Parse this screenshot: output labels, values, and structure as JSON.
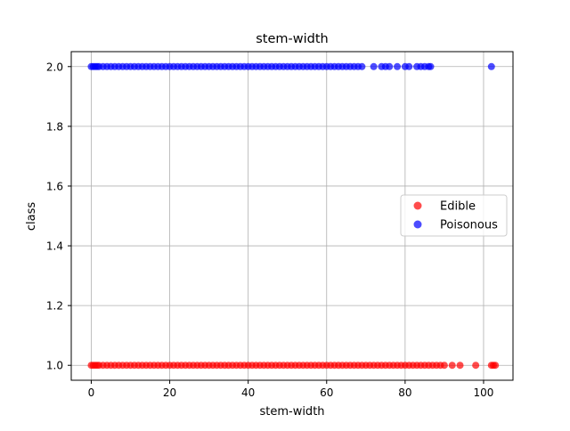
{
  "chart_data": {
    "type": "scatter",
    "title": "stem-width",
    "xlabel": "stem-width",
    "ylabel": "class",
    "xlim": [
      -5.1,
      107.5
    ],
    "ylim": [
      0.95,
      2.05
    ],
    "xticks": [
      0,
      20,
      40,
      60,
      80,
      100
    ],
    "yticks": [
      1.0,
      1.2,
      1.4,
      1.6,
      1.8,
      2.0
    ],
    "xtick_labels": [
      "0",
      "20",
      "40",
      "60",
      "80",
      "100"
    ],
    "ytick_labels": [
      "1.0",
      "1.2",
      "1.4",
      "1.6",
      "1.8",
      "2.0"
    ],
    "grid": true,
    "legend_position": "center-right",
    "series": [
      {
        "name": "Edible",
        "color": "#ff0000",
        "y": 1.0,
        "x": [
          0,
          0.5,
          1,
          1.5,
          2,
          3,
          4,
          5,
          6,
          7,
          8,
          9,
          10,
          11,
          12,
          13,
          14,
          15,
          16,
          17,
          18,
          19,
          20,
          21,
          22,
          23,
          24,
          25,
          26,
          27,
          28,
          29,
          30,
          31,
          32,
          33,
          34,
          35,
          36,
          37,
          38,
          39,
          40,
          41,
          42,
          43,
          44,
          45,
          46,
          47,
          48,
          49,
          50,
          51,
          52,
          53,
          54,
          55,
          56,
          57,
          58,
          59,
          60,
          61,
          62,
          63,
          64,
          65,
          66,
          67,
          68,
          69,
          70,
          71,
          72,
          73,
          74,
          75,
          76,
          77,
          78,
          79,
          80,
          81,
          82,
          83,
          84,
          85,
          86,
          87,
          88,
          89,
          90,
          92,
          94,
          98,
          102,
          102.5,
          103
        ]
      },
      {
        "name": "Poisonous",
        "color": "#0000ff",
        "y": 2.0,
        "x": [
          0,
          0.5,
          1,
          1.5,
          2,
          3,
          4,
          5,
          6,
          7,
          8,
          9,
          10,
          11,
          12,
          13,
          14,
          15,
          16,
          17,
          18,
          19,
          20,
          21,
          22,
          23,
          24,
          25,
          26,
          27,
          28,
          29,
          30,
          31,
          32,
          33,
          34,
          35,
          36,
          37,
          38,
          39,
          40,
          41,
          42,
          43,
          44,
          45,
          46,
          47,
          48,
          49,
          50,
          51,
          52,
          53,
          54,
          55,
          56,
          57,
          58,
          59,
          60,
          61,
          62,
          63,
          64,
          65,
          66,
          67,
          68,
          69,
          72,
          74,
          75,
          76,
          78,
          80,
          81,
          83,
          84,
          85,
          86,
          86.5,
          102
        ]
      }
    ]
  }
}
